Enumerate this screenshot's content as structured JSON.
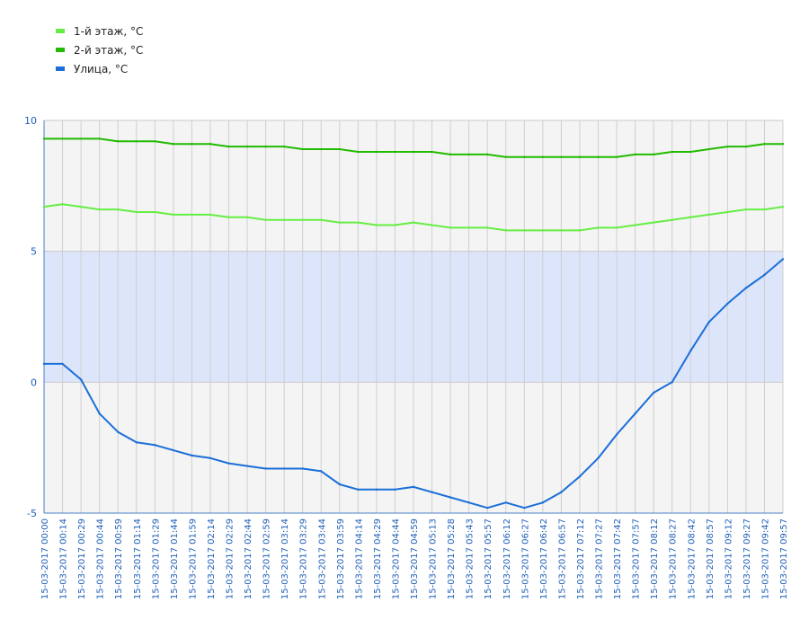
{
  "chart_data": {
    "type": "line",
    "ylim": [
      -5,
      10
    ],
    "yticks": [
      10,
      5,
      0,
      -5
    ],
    "highlight_band": {
      "from": 0,
      "to": 5,
      "color": "#dde5fb"
    },
    "grid": true,
    "legend_position": "top-left",
    "xticks": [
      "15-03-2017 00:00",
      "15-03-2017 00:14",
      "15-03-2017 00:29",
      "15-03-2017 00:44",
      "15-03-2017 00:59",
      "15-03-2017 01:14",
      "15-03-2017 01:29",
      "15-03-2017 01:44",
      "15-03-2017 01:59",
      "15-03-2017 02:14",
      "15-03-2017 02:29",
      "15-03-2017 02:44",
      "15-03-2017 02:59",
      "15-03-2017 03:14",
      "15-03-2017 03:29",
      "15-03-2017 03:44",
      "15-03-2017 03:59",
      "15-03-2017 04:14",
      "15-03-2017 04:29",
      "15-03-2017 04:44",
      "15-03-2017 04:59",
      "15-03-2017 05:13",
      "15-03-2017 05:28",
      "15-03-2017 05:43",
      "15-03-2017 05:57",
      "15-03-2017 06:12",
      "15-03-2017 06:27",
      "15-03-2017 06:42",
      "15-03-2017 06:57",
      "15-03-2017 07:12",
      "15-03-2017 07:27",
      "15-03-2017 07:42",
      "15-03-2017 07:57",
      "15-03-2017 08:12",
      "15-03-2017 08:27",
      "15-03-2017 08:42",
      "15-03-2017 08:57",
      "15-03-2017 09:12",
      "15-03-2017 09:27",
      "15-03-2017 09:42",
      "15-03-2017 09:57"
    ],
    "series": [
      {
        "name": "1-й этаж, °C",
        "color": "#66ee44",
        "values": [
          6.7,
          6.8,
          6.7,
          6.6,
          6.6,
          6.5,
          6.5,
          6.4,
          6.4,
          6.4,
          6.3,
          6.3,
          6.2,
          6.2,
          6.2,
          6.2,
          6.1,
          6.1,
          6.0,
          6.0,
          6.1,
          6.0,
          5.9,
          5.9,
          5.9,
          5.8,
          5.8,
          5.8,
          5.8,
          5.8,
          5.9,
          5.9,
          6.0,
          6.1,
          6.2,
          6.3,
          6.4,
          6.5,
          6.6,
          6.6,
          6.7
        ]
      },
      {
        "name": "2-й этаж, °C",
        "color": "#22bb00",
        "values": [
          9.3,
          9.3,
          9.3,
          9.3,
          9.2,
          9.2,
          9.2,
          9.1,
          9.1,
          9.1,
          9.0,
          9.0,
          9.0,
          9.0,
          8.9,
          8.9,
          8.9,
          8.8,
          8.8,
          8.8,
          8.8,
          8.8,
          8.7,
          8.7,
          8.7,
          8.6,
          8.6,
          8.6,
          8.6,
          8.6,
          8.6,
          8.6,
          8.7,
          8.7,
          8.8,
          8.8,
          8.9,
          9.0,
          9.0,
          9.1,
          9.1
        ]
      },
      {
        "name": "Улица, °C",
        "color": "#1a6fd8",
        "values": [
          0.7,
          0.7,
          0.1,
          -1.2,
          -1.9,
          -2.3,
          -2.4,
          -2.6,
          -2.8,
          -2.9,
          -3.1,
          -3.2,
          -3.3,
          -3.3,
          -3.3,
          -3.4,
          -3.9,
          -4.1,
          -4.1,
          -4.1,
          -4.0,
          -4.2,
          -4.4,
          -4.6,
          -4.8,
          -4.6,
          -4.8,
          -4.6,
          -4.2,
          -3.6,
          -2.9,
          -2.0,
          -1.2,
          -0.4,
          0.0,
          1.2,
          2.3,
          3.0,
          3.6,
          4.1,
          4.7
        ]
      }
    ]
  }
}
